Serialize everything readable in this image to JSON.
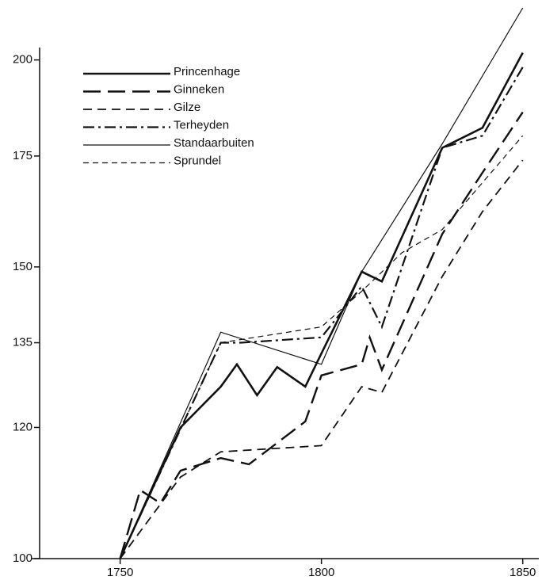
{
  "chart_data": {
    "type": "line",
    "log_y": true,
    "xlim": [
      1730,
      1854
    ],
    "xticks": [
      1750,
      1800,
      1850
    ],
    "ylim": [
      100,
      215
    ],
    "yticks": [
      100,
      120,
      135,
      150,
      175,
      200
    ],
    "legend": "upper left",
    "series": [
      {
        "name": "Princenhage",
        "color": "#111111",
        "style": "solid-thick",
        "x": [
          1750,
          1765,
          1775,
          1779,
          1784,
          1789,
          1796,
          1800,
          1810,
          1815,
          1830,
          1840,
          1850
        ],
        "values": [
          100,
          120,
          127,
          131,
          125.5,
          130.5,
          127,
          133,
          149,
          147,
          177,
          182,
          202
        ]
      },
      {
        "name": "Ginneken",
        "color": "#111111",
        "style": "long-dash",
        "x": [
          1750,
          1755,
          1760,
          1765,
          1775,
          1782,
          1796,
          1800,
          1805,
          1810,
          1812,
          1815,
          1830,
          1840,
          1850
        ],
        "values": [
          100,
          110,
          108,
          113,
          115,
          114,
          121,
          129,
          130,
          131,
          136,
          130,
          157,
          171,
          186
        ]
      },
      {
        "name": "Gilze",
        "color": "#111111",
        "style": "dash",
        "x": [
          1750,
          1765,
          1775,
          1800,
          1810,
          1815,
          1830,
          1840,
          1850
        ],
        "values": [
          100,
          112,
          116,
          117,
          127,
          126,
          148,
          162,
          174
        ]
      },
      {
        "name": "Terheyden",
        "color": "#111111",
        "style": "dash-dot",
        "x": [
          1750,
          1775,
          1780,
          1800,
          1810,
          1815,
          1830,
          1840,
          1850
        ],
        "values": [
          100,
          135,
          135,
          136,
          146,
          138,
          177,
          180,
          198
        ]
      },
      {
        "name": "Standaarbuiten",
        "color": "#111111",
        "style": "solid-thin",
        "x": [
          1750,
          1775,
          1800,
          1810,
          1830,
          1850
        ],
        "values": [
          100,
          137,
          131,
          149,
          178,
          215
        ]
      },
      {
        "name": "Sprundel",
        "color": "#111111",
        "style": "short-dash",
        "x": [
          1750,
          1775,
          1800,
          1810,
          1820,
          1830,
          1850
        ],
        "values": [
          100,
          135,
          138,
          145,
          153,
          158,
          180
        ]
      }
    ]
  }
}
